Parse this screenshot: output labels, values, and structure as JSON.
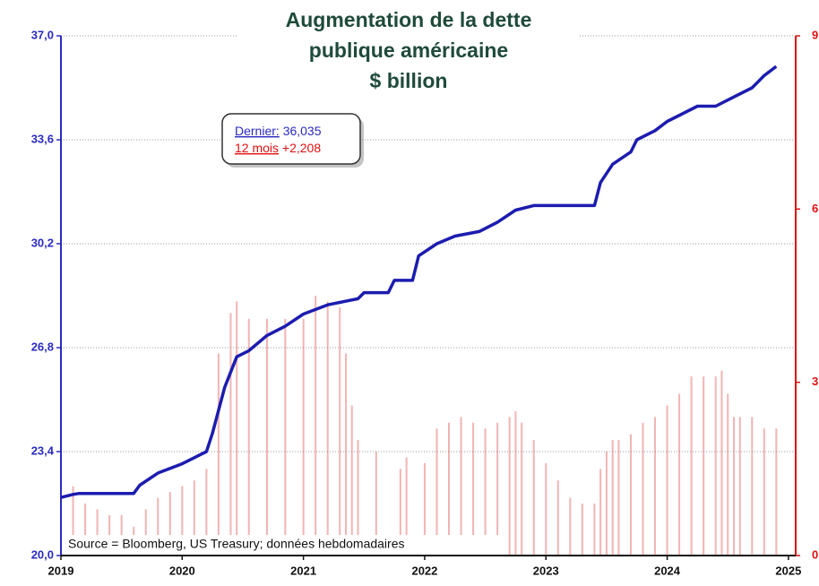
{
  "chart_data": {
    "type": "line",
    "title": [
      "Augmentation de la dette",
      "publique américaine",
      "$ billion"
    ],
    "annotation": {
      "last_label": "Dernier:",
      "last_value": "36,035",
      "change_label": "12 mois",
      "change_value": "+2,208"
    },
    "source": "Source = Bloomberg, US Treasury; données hebdomadaires",
    "xlim": [
      2019,
      2025.06
    ],
    "xticks": [
      2019,
      2020,
      2021,
      2022,
      2023,
      2024,
      2025
    ],
    "ylim": [
      20,
      37
    ],
    "yticks": [
      {
        "value": 20,
        "label": "20,0"
      },
      {
        "value": 23.4,
        "label": "23,4"
      },
      {
        "value": 26.8,
        "label": "26,8"
      },
      {
        "value": 30.2,
        "label": "30,2"
      },
      {
        "value": 33.6,
        "label": "33,6"
      },
      {
        "value": 37,
        "label": "37,0"
      }
    ],
    "y2lim": [
      0,
      9
    ],
    "y2ticks": [
      0,
      3,
      6,
      9
    ],
    "grid": true,
    "series": [
      {
        "type": "line",
        "color": "#1c1cb0",
        "x": [
          2019.0,
          2019.1,
          2019.15,
          2019.6,
          2019.65,
          2019.8,
          2020.0,
          2020.2,
          2020.25,
          2020.35,
          2020.45,
          2020.55,
          2020.7,
          2020.85,
          2021.0,
          2021.2,
          2021.45,
          2021.5,
          2021.7,
          2021.75,
          2021.9,
          2021.95,
          2022.1,
          2022.25,
          2022.45,
          2022.6,
          2022.75,
          2022.9,
          2023.0,
          2023.4,
          2023.45,
          2023.55,
          2023.7,
          2023.75,
          2023.9,
          2024.0,
          2024.25,
          2024.4,
          2024.55,
          2024.7,
          2024.75,
          2024.8,
          2024.9
        ],
        "values": [
          21.9,
          22.0,
          22.03,
          22.03,
          22.3,
          22.7,
          23.0,
          23.4,
          24.0,
          25.5,
          26.5,
          26.7,
          27.2,
          27.5,
          27.9,
          28.2,
          28.4,
          28.6,
          28.6,
          29.0,
          29.0,
          29.8,
          30.2,
          30.45,
          30.6,
          30.9,
          31.3,
          31.45,
          31.45,
          31.45,
          32.2,
          32.8,
          33.2,
          33.6,
          33.9,
          34.2,
          34.7,
          34.7,
          35.0,
          35.3,
          35.5,
          35.7,
          36.0
        ]
      },
      {
        "type": "bar",
        "axis": "y2",
        "color": "#f2b4b4",
        "x": [
          2019.0,
          2019.1,
          2019.2,
          2019.3,
          2019.4,
          2019.5,
          2019.6,
          2019.7,
          2019.8,
          2019.9,
          2020.0,
          2020.1,
          2020.2,
          2020.3,
          2020.4,
          2020.45,
          2020.55,
          2020.7,
          2020.85,
          2021.0,
          2021.1,
          2021.2,
          2021.3,
          2021.35,
          2021.4,
          2021.45,
          2021.6,
          2021.8,
          2021.85,
          2022.0,
          2022.1,
          2022.2,
          2022.3,
          2022.4,
          2022.5,
          2022.6,
          2022.7,
          2022.75,
          2022.8,
          2022.9,
          2023.0,
          2023.1,
          2023.2,
          2023.3,
          2023.4,
          2023.45,
          2023.5,
          2023.55,
          2023.6,
          2023.7,
          2023.8,
          2023.9,
          2024.0,
          2024.1,
          2024.2,
          2024.3,
          2024.4,
          2024.45,
          2024.5,
          2024.55,
          2024.6,
          2024.7,
          2024.8,
          2024.9
        ],
        "values": [
          1.4,
          1.2,
          0.9,
          0.8,
          0.7,
          0.7,
          0.5,
          0.8,
          1.0,
          1.1,
          1.2,
          1.3,
          1.5,
          3.5,
          4.2,
          4.4,
          4.1,
          4.1,
          4.1,
          4.1,
          4.5,
          4.4,
          4.3,
          3.5,
          2.6,
          2.0,
          1.8,
          1.5,
          1.7,
          1.6,
          2.2,
          2.3,
          2.4,
          2.3,
          2.2,
          2.3,
          2.4,
          2.5,
          2.3,
          2.0,
          1.6,
          1.3,
          1.0,
          0.9,
          0.9,
          1.5,
          1.8,
          2.0,
          2.0,
          2.1,
          2.3,
          2.4,
          2.6,
          2.8,
          3.1,
          3.1,
          3.1,
          3.2,
          2.8,
          2.4,
          2.4,
          2.4,
          2.2,
          2.2
        ]
      }
    ]
  }
}
